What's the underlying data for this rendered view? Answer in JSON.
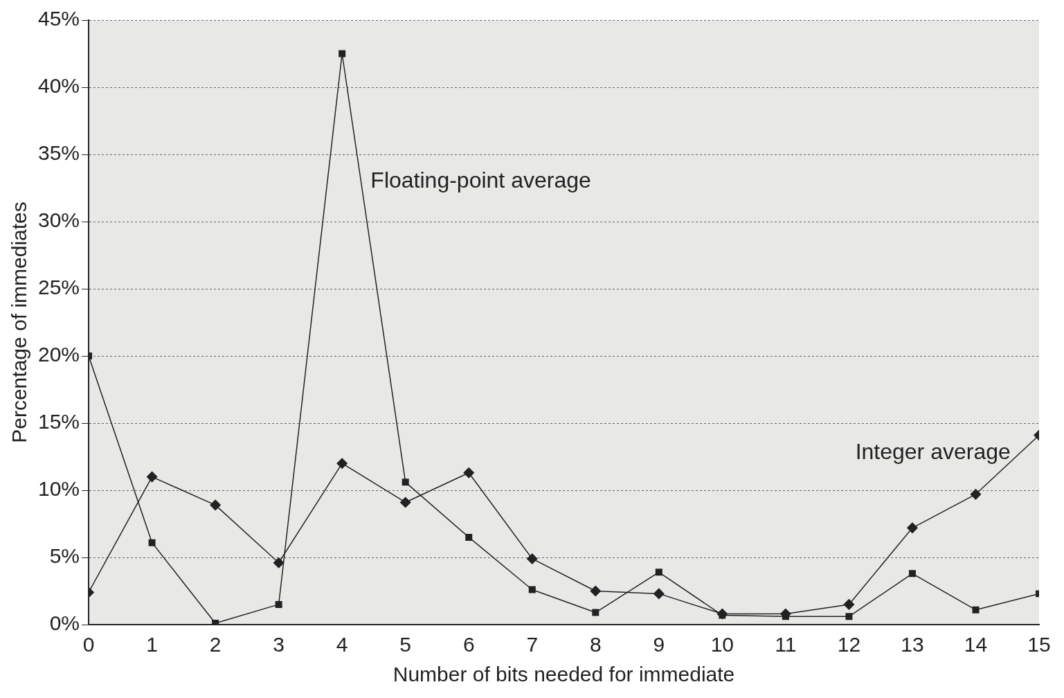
{
  "chart_data": {
    "type": "line",
    "xlabel": "Number of bits needed for immediate",
    "ylabel": "Percentage of immediates",
    "x": [
      0,
      1,
      2,
      3,
      4,
      5,
      6,
      7,
      8,
      9,
      10,
      11,
      12,
      13,
      14,
      15
    ],
    "series": [
      {
        "name": "Floating-point average",
        "color": "#222222",
        "marker": "square",
        "values": [
          20,
          6.1,
          0.1,
          1.5,
          42.5,
          10.6,
          6.5,
          2.6,
          0.9,
          3.9,
          0.7,
          0.6,
          0.6,
          3.8,
          1.1,
          2.3
        ]
      },
      {
        "name": "Integer average",
        "color": "#222222",
        "marker": "diamond",
        "values": [
          2.4,
          11,
          8.9,
          4.6,
          12,
          9.1,
          11.3,
          4.9,
          2.5,
          2.3,
          0.8,
          0.8,
          1.5,
          7.2,
          9.7,
          14.1
        ]
      }
    ],
    "xlim": [
      0,
      15
    ],
    "xticks": [
      0,
      1,
      2,
      3,
      4,
      5,
      6,
      7,
      8,
      9,
      10,
      11,
      12,
      13,
      14,
      15
    ],
    "ylim": [
      0,
      45
    ],
    "yticks": [
      {
        "value": 0,
        "label": "0%"
      },
      {
        "value": 5,
        "label": "5%"
      },
      {
        "value": 10,
        "label": "10%"
      },
      {
        "value": 15,
        "label": "15%"
      },
      {
        "value": 20,
        "label": "20%"
      },
      {
        "value": 25,
        "label": "25%"
      },
      {
        "value": 30,
        "label": "30%"
      },
      {
        "value": 35,
        "label": "35%"
      },
      {
        "value": 40,
        "label": "40%"
      },
      {
        "value": 45,
        "label": "45%"
      }
    ],
    "grid": "y",
    "legend": false,
    "line_style": "solid"
  }
}
